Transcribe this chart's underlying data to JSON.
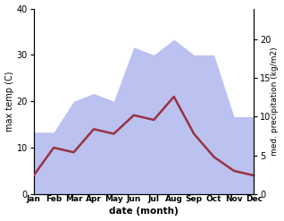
{
  "months": [
    "Jan",
    "Feb",
    "Mar",
    "Apr",
    "May",
    "Jun",
    "Jul",
    "Aug",
    "Sep",
    "Oct",
    "Nov",
    "Dec"
  ],
  "temp": [
    4,
    10,
    9,
    14,
    13,
    17,
    16,
    21,
    13,
    8,
    5,
    4
  ],
  "precip": [
    8,
    8,
    12,
    13,
    12,
    19,
    18,
    20,
    18,
    18,
    10,
    10
  ],
  "temp_color": "#993344",
  "precip_color": "#b0b8ee",
  "xlabel": "date (month)",
  "ylabel_left": "max temp (C)",
  "ylabel_right": "med. precipitation (kg/m2)",
  "ylim_left": [
    0,
    40
  ],
  "ylim_right": [
    0,
    24
  ],
  "yticks_left": [
    0,
    10,
    20,
    30,
    40
  ],
  "yticks_right": [
    0,
    5,
    10,
    15,
    20
  ],
  "bg_color": "#ffffff",
  "temp_linewidth": 1.8
}
